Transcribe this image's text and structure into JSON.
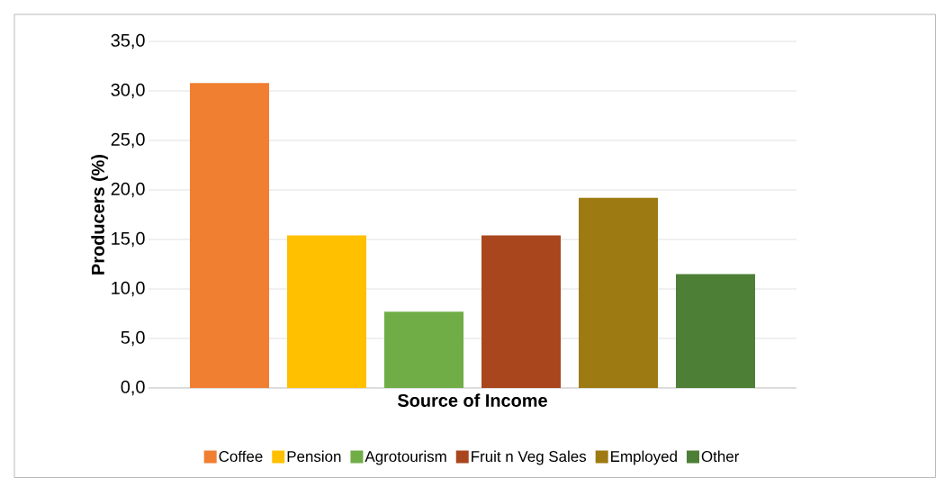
{
  "chart_data": {
    "type": "bar",
    "xlabel": "Source of Income",
    "ylabel": "Producers (%)",
    "categories": [
      null
    ],
    "series": [
      {
        "name": "Coffee",
        "color": "#f07f32",
        "values": [
          30.8
        ]
      },
      {
        "name": "Pension",
        "color": "#ffc000",
        "values": [
          15.4
        ]
      },
      {
        "name": "Agrotourism",
        "color": "#70ad47",
        "values": [
          7.7
        ]
      },
      {
        "name": "Fruit n Veg Sales",
        "color": "#a9461d",
        "values": [
          15.4
        ]
      },
      {
        "name": "Employed",
        "color": "#9e7a12",
        "values": [
          19.2
        ]
      },
      {
        "name": "Other",
        "color": "#4e7f36",
        "values": [
          11.5
        ]
      }
    ],
    "ylim": [
      0,
      35
    ],
    "yticks": [
      {
        "value": 0,
        "label": "0,0"
      },
      {
        "value": 5,
        "label": "5,0"
      },
      {
        "value": 10,
        "label": "10,0"
      },
      {
        "value": 15,
        "label": "15,0"
      },
      {
        "value": 20,
        "label": "20,0"
      },
      {
        "value": 25,
        "label": "25,0"
      },
      {
        "value": 30,
        "label": "30,0"
      },
      {
        "value": 35,
        "label": "35,0"
      }
    ],
    "grid": "y",
    "legend": "bottom"
  }
}
